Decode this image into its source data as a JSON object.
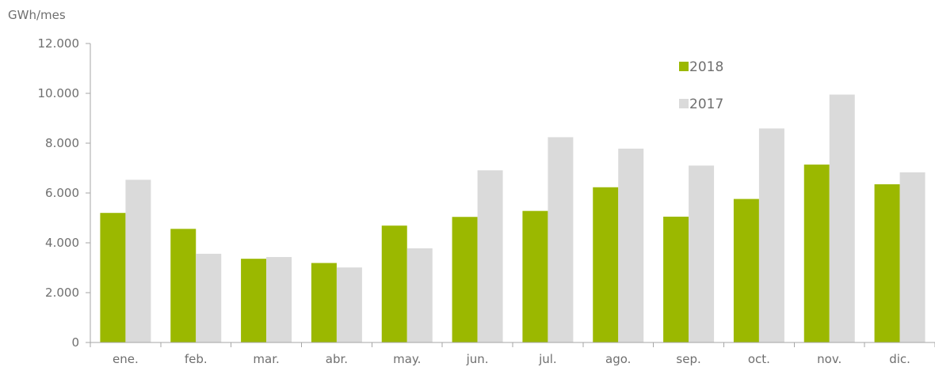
{
  "chart_data": {
    "type": "bar",
    "ylabel": "GWh/mes",
    "categories": [
      "ene.",
      "feb.",
      "mar.",
      "abr.",
      "may.",
      "jun.",
      "jul.",
      "ago.",
      "sep.",
      "oct.",
      "nov.",
      "dic."
    ],
    "series": [
      {
        "name": "2018",
        "color": "#9bb800",
        "values": [
          5200,
          4560,
          3360,
          3190,
          4690,
          5040,
          5280,
          6230,
          5050,
          5760,
          7140,
          6350
        ]
      },
      {
        "name": "2017",
        "color": "#dadada",
        "values": [
          6530,
          3560,
          3430,
          3010,
          3780,
          6910,
          8240,
          7780,
          7100,
          8590,
          9950,
          6830
        ]
      }
    ],
    "ylim": [
      0,
      12000
    ],
    "yticks": [
      0,
      2000,
      4000,
      6000,
      8000,
      10000,
      12000
    ],
    "ytick_labels": [
      "0",
      "2.000",
      "4.000",
      "6.000",
      "8.000",
      "10.000",
      "12.000"
    ],
    "grid": false,
    "legend_position": "top-right"
  }
}
